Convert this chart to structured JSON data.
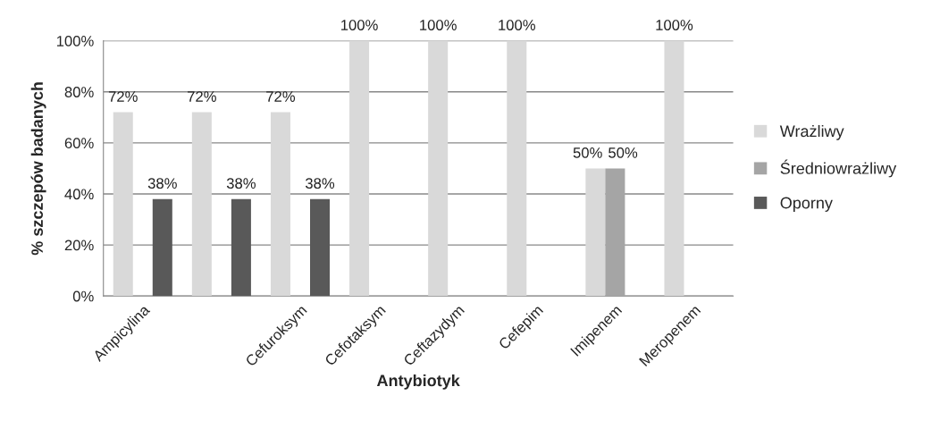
{
  "chart_data": {
    "type": "bar",
    "xlabel": "Antybiotyk",
    "ylabel": "% szczepów badanych",
    "categories": [
      "Ampicylina",
      null,
      "Cefuroksym",
      "Cefotaksym",
      "Ceftazydym",
      "Cefepim",
      "Imipenem",
      "Meropenem"
    ],
    "series": [
      {
        "name": "Wrażliwy",
        "color": "#d9d9d9",
        "values": [
          72,
          72,
          72,
          100,
          100,
          100,
          50,
          100
        ],
        "value_labels": [
          "72%",
          "72%",
          "72%",
          "100%",
          "100%",
          "100%",
          "50%",
          "100%"
        ]
      },
      {
        "name": "Średniowrażliwy",
        "color": "#a5a5a5",
        "values": [
          0,
          0,
          0,
          0,
          0,
          0,
          50,
          0
        ],
        "value_labels": [
          null,
          null,
          null,
          null,
          null,
          null,
          "50%",
          null
        ]
      },
      {
        "name": "Oporny",
        "color": "#595959",
        "values": [
          38,
          38,
          38,
          0,
          0,
          0,
          0,
          0
        ],
        "value_labels": [
          "38%",
          "38%",
          "38%",
          null,
          null,
          null,
          null,
          null
        ]
      }
    ],
    "ylim": [
      0,
      100
    ],
    "yticks": [
      {
        "value": 0,
        "label": "0%"
      },
      {
        "value": 20,
        "label": "20%"
      },
      {
        "value": 40,
        "label": "40%"
      },
      {
        "value": 60,
        "label": "60%"
      },
      {
        "value": 80,
        "label": "80%"
      },
      {
        "value": 100,
        "label": "100%"
      }
    ],
    "grid": "y",
    "legend": "right"
  }
}
